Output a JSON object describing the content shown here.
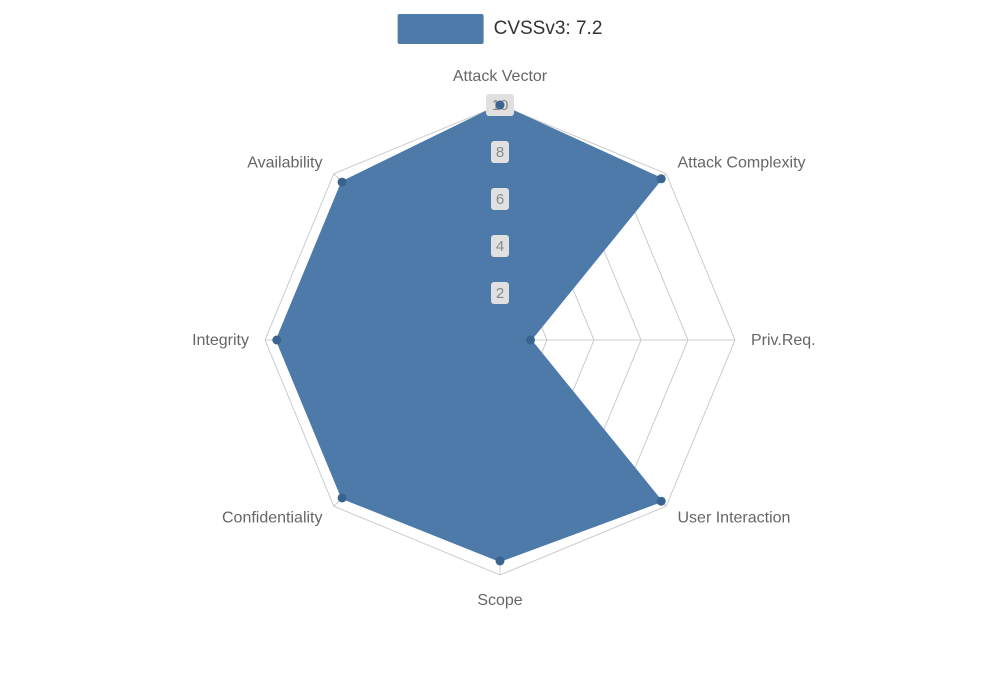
{
  "legend": {
    "label": "CVSSv3: 7.2"
  },
  "chart_data": {
    "type": "radar",
    "title": "CVSSv3: 7.2",
    "legend_position": "top-center",
    "grid": true,
    "indicators": [
      "Attack Vector",
      "Attack Complexity",
      "Priv.Req.",
      "User Interaction",
      "Scope",
      "Confidentiality",
      "Integrity",
      "Availability"
    ],
    "series": [
      {
        "name": "CVSSv3: 7.2",
        "values": [
          10,
          9.7,
          1.3,
          9.7,
          9.4,
          9.5,
          9.5,
          9.5
        ]
      }
    ],
    "max": 10,
    "min": 0,
    "tick_interval": 2,
    "ticks": [
      2,
      4,
      6,
      8,
      10
    ],
    "colors": {
      "series_fill": "#4d7aa8",
      "series_line": "#4d7aa8",
      "marker": "#39648f",
      "grid_line": "#cccccc",
      "axis_label": "#666666",
      "tick_text": "#8a8a8a",
      "tick_bg": "#e0e0e0",
      "legend_text": "#333333",
      "background": "#ffffff"
    }
  }
}
